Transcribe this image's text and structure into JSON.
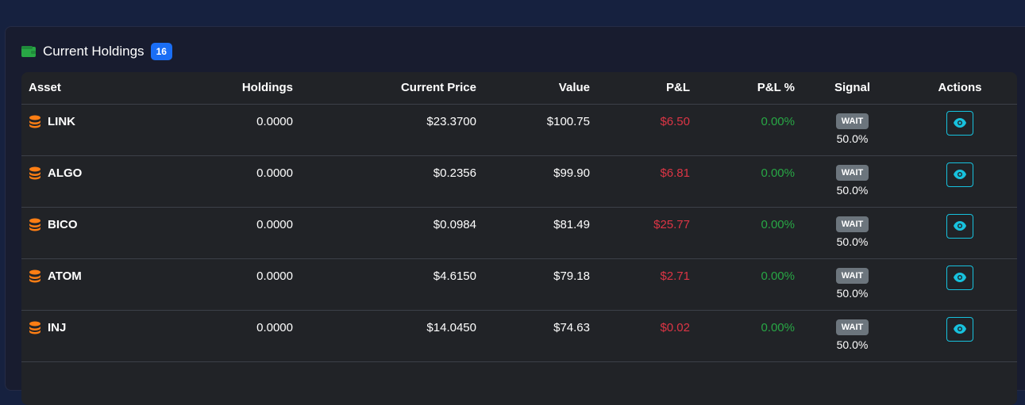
{
  "panel": {
    "title": "Current Holdings",
    "count": "16"
  },
  "table": {
    "headers": {
      "asset": "Asset",
      "holdings": "Holdings",
      "price": "Current Price",
      "value": "Value",
      "pnl": "P&L",
      "pnl_pct": "P&L %",
      "signal": "Signal",
      "actions": "Actions"
    },
    "rows": [
      {
        "asset": "LINK",
        "holdings": "0.0000",
        "price": "$23.3700",
        "value": "$100.75",
        "pnl": "$6.50",
        "pnl_pct": "0.00%",
        "signal": "WAIT",
        "confidence": "50.0%"
      },
      {
        "asset": "ALGO",
        "holdings": "0.0000",
        "price": "$0.2356",
        "value": "$99.90",
        "pnl": "$6.81",
        "pnl_pct": "0.00%",
        "signal": "WAIT",
        "confidence": "50.0%"
      },
      {
        "asset": "BICO",
        "holdings": "0.0000",
        "price": "$0.0984",
        "value": "$81.49",
        "pnl": "$25.77",
        "pnl_pct": "0.00%",
        "signal": "WAIT",
        "confidence": "50.0%"
      },
      {
        "asset": "ATOM",
        "holdings": "0.0000",
        "price": "$4.6150",
        "value": "$79.18",
        "pnl": "$2.71",
        "pnl_pct": "0.00%",
        "signal": "WAIT",
        "confidence": "50.0%"
      },
      {
        "asset": "INJ",
        "holdings": "0.0000",
        "price": "$14.0450",
        "value": "$74.63",
        "pnl": "$0.02",
        "pnl_pct": "0.00%",
        "signal": "WAIT",
        "confidence": "50.0%"
      }
    ]
  },
  "icons": {
    "header": "wallet-icon",
    "asset": "coins-icon",
    "action": "eye-icon"
  },
  "colors": {
    "page_bg": "#16213f",
    "panel_bg": "#181c2f",
    "table_bg": "#212327",
    "badge_blue": "#1a6ef5",
    "loss": "#dc3545",
    "gain": "#28a745",
    "signal_badge": "#6c757d",
    "action_accent": "#17c2de",
    "coin_orange": "#fd7e14",
    "wallet_green": "#28a745"
  }
}
